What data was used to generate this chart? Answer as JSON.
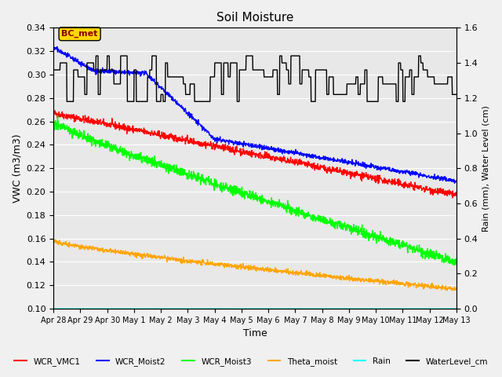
{
  "title": "Soil Moisture",
  "xlabel": "Time",
  "ylabel_left": "VWC (m3/m3)",
  "ylabel_right": "Rain (mm), Water Level (cm)",
  "ylim_left": [
    0.1,
    0.34
  ],
  "ylim_right": [
    0.0,
    1.6
  ],
  "yticks_left": [
    0.1,
    0.12,
    0.14,
    0.16,
    0.18,
    0.2,
    0.22,
    0.24,
    0.26,
    0.28,
    0.3,
    0.32,
    0.34
  ],
  "yticks_right": [
    0.0,
    0.2,
    0.4,
    0.6,
    0.8,
    1.0,
    1.2,
    1.4,
    1.6
  ],
  "xtick_labels": [
    "Apr 28",
    "Apr 29",
    "Apr 30",
    "May 1",
    "May 2",
    "May 3",
    "May 4",
    "May 5",
    "May 6",
    "May 7",
    "May 8",
    "May 9",
    "May 10",
    "May 11",
    "May 12",
    "May 13"
  ],
  "num_days": 15,
  "background_color": "#e8e8e8",
  "grid_color": "#ffffff",
  "legend_labels": [
    "WCR_VMC1",
    "WCR_Moist2",
    "WCR_Moist3",
    "Theta_moist",
    "Rain",
    "WaterLevel_cm"
  ],
  "legend_colors": [
    "red",
    "blue",
    "lime",
    "orange",
    "cyan",
    "black"
  ],
  "bc_met_box_color": "#ffd700",
  "bc_met_text_color": "#8b0000"
}
